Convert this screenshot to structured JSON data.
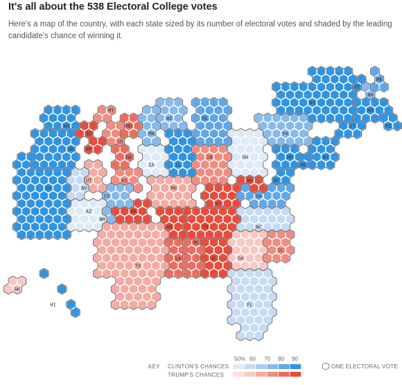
{
  "header": {
    "title": "It's all about the 538 Electoral College votes",
    "subtitle": "Here's a map of the country, with each state sized by its number of electoral votes and shaded by the leading candidate's chance of winning it."
  },
  "colors": {
    "clinton_scale": [
      "#ddeaf7",
      "#c5dbf3",
      "#a9cbef",
      "#86b9ec",
      "#5ea7ea",
      "#3194e3"
    ],
    "trump_scale": [
      "#fbe0dd",
      "#f8c8c2",
      "#f5aba2",
      "#f28b80",
      "#ee6c5f",
      "#e74c3c"
    ],
    "outline": "#5b5b5b"
  },
  "legend": {
    "key_label": "KEY",
    "clinton_label": "CLINTON'S CHANCES",
    "trump_label": "TRUMP'S CHANCES",
    "ticks": [
      "50%",
      "60",
      "70",
      "80",
      "90"
    ],
    "one_vote_label": "ONE ELECTORAL VOTE"
  },
  "states": [
    {
      "abbr": "ME",
      "party": "D",
      "level": 4
    },
    {
      "abbr": "VT",
      "party": "D",
      "level": 5
    },
    {
      "abbr": "NH",
      "party": "D",
      "level": 3
    },
    {
      "abbr": "MA",
      "party": "D",
      "level": 5
    },
    {
      "abbr": "RI",
      "party": "D",
      "level": 5
    },
    {
      "abbr": "CT",
      "party": "D",
      "level": 5
    },
    {
      "abbr": "NY",
      "party": "D",
      "level": 5
    },
    {
      "abbr": "NJ",
      "party": "D",
      "level": 5
    },
    {
      "abbr": "PA",
      "party": "D",
      "level": 3
    },
    {
      "abbr": "DE",
      "party": "D",
      "level": 5
    },
    {
      "abbr": "MD",
      "party": "D",
      "level": 5
    },
    {
      "abbr": "DC",
      "party": "D",
      "level": 5
    },
    {
      "abbr": "VA",
      "party": "D",
      "level": 4
    },
    {
      "abbr": "NC",
      "party": "D",
      "level": 1
    },
    {
      "abbr": "OH",
      "party": "D",
      "level": 0
    },
    {
      "abbr": "WV",
      "party": "R",
      "level": 5
    },
    {
      "abbr": "KY",
      "party": "R",
      "level": 5
    },
    {
      "abbr": "TN",
      "party": "R",
      "level": 5
    },
    {
      "abbr": "SC",
      "party": "R",
      "level": 3
    },
    {
      "abbr": "GA",
      "party": "R",
      "level": 1
    },
    {
      "abbr": "FL",
      "party": "D",
      "level": 1
    },
    {
      "abbr": "AL",
      "party": "R",
      "level": 5
    },
    {
      "abbr": "MS",
      "party": "R",
      "level": 4
    },
    {
      "abbr": "LA",
      "party": "R",
      "level": 4
    },
    {
      "abbr": "AR",
      "party": "R",
      "level": 5
    },
    {
      "abbr": "MI",
      "party": "D",
      "level": 4
    },
    {
      "abbr": "IN",
      "party": "R",
      "level": 3
    },
    {
      "abbr": "IL",
      "party": "D",
      "level": 5
    },
    {
      "abbr": "WI",
      "party": "D",
      "level": 3
    },
    {
      "abbr": "MN",
      "party": "D",
      "level": 3
    },
    {
      "abbr": "IA",
      "party": "D",
      "level": 0
    },
    {
      "abbr": "MO",
      "party": "R",
      "level": 2
    },
    {
      "abbr": "ND",
      "party": "R",
      "level": 4
    },
    {
      "abbr": "SD",
      "party": "R",
      "level": 3
    },
    {
      "abbr": "NE",
      "party": "R",
      "level": 4
    },
    {
      "abbr": "KS",
      "party": "R",
      "level": 3
    },
    {
      "abbr": "OK",
      "party": "R",
      "level": 5
    },
    {
      "abbr": "TX",
      "party": "R",
      "level": 2
    },
    {
      "abbr": "MT",
      "party": "R",
      "level": 3
    },
    {
      "abbr": "WY",
      "party": "R",
      "level": 5
    },
    {
      "abbr": "ID",
      "party": "R",
      "level": 5
    },
    {
      "abbr": "CO",
      "party": "D",
      "level": 3
    },
    {
      "abbr": "UT",
      "party": "R",
      "level": 2
    },
    {
      "abbr": "NM",
      "party": "D",
      "level": 3
    },
    {
      "abbr": "AZ",
      "party": "D",
      "level": 0
    },
    {
      "abbr": "NV",
      "party": "D",
      "level": 1
    },
    {
      "abbr": "CA",
      "party": "D",
      "level": 5
    },
    {
      "abbr": "OR",
      "party": "D",
      "level": 5
    },
    {
      "abbr": "WA",
      "party": "D",
      "level": 5
    },
    {
      "abbr": "AK",
      "party": "R",
      "level": 1
    },
    {
      "abbr": "HI",
      "party": "D",
      "level": 5
    }
  ]
}
